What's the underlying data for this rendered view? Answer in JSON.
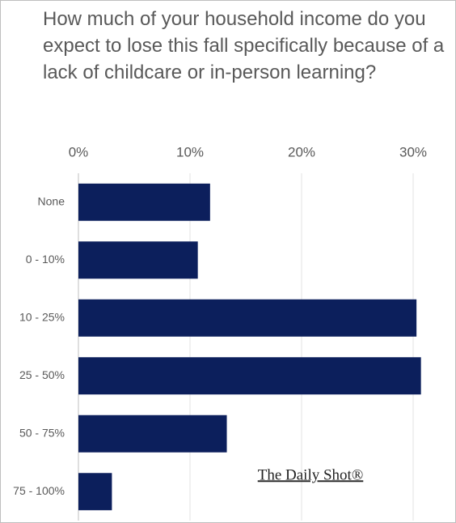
{
  "chart_data": {
    "type": "bar",
    "orientation": "horizontal",
    "title": "How much of your household income do you expect to lose this fall specifically because of a lack of childcare or in-person learning?",
    "categories": [
      "None",
      "0 - 10%",
      "10 - 25%",
      "25 - 50%",
      "50 - 75%",
      "75 - 100%"
    ],
    "values": [
      11.8,
      10.7,
      30.3,
      30.7,
      13.3,
      3.0
    ],
    "color": "#0c1f5c",
    "xlim": [
      0,
      32
    ],
    "xticks": [
      {
        "value": 0,
        "label": "0%"
      },
      {
        "value": 10,
        "label": "10%"
      },
      {
        "value": 20,
        "label": "20%"
      },
      {
        "value": 30,
        "label": "30%"
      }
    ],
    "grid": true,
    "watermark": "The Daily Shot®"
  }
}
